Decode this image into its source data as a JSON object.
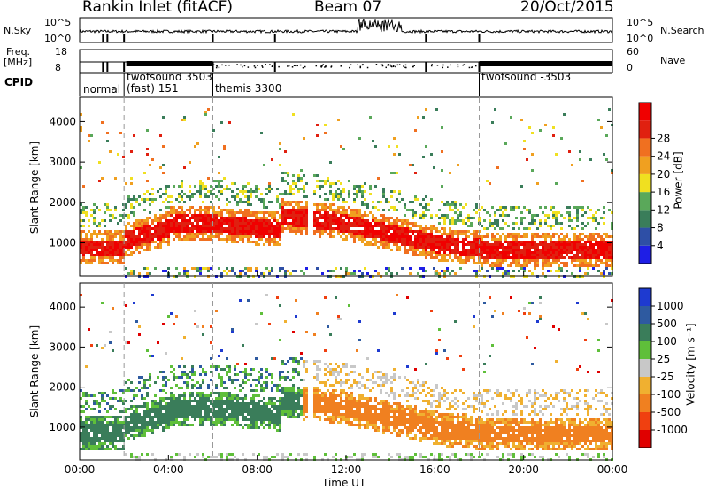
{
  "header": {
    "station": "Rankin Inlet (fitACF)",
    "beam": "Beam 07",
    "date": "20/Oct/2015"
  },
  "panels": {
    "nsky_label": "N.Sky",
    "nsky_ticks": [
      "10^5",
      "10^0"
    ],
    "nsearch_label": "N.Search",
    "nsearch_ticks": [
      "10^5",
      "10^0"
    ],
    "freq_label": "Freq.",
    "freq_unit": "[MHz]",
    "freq_ticks": [
      "18",
      "8"
    ],
    "nave_label": "Nave",
    "nave_ticks": [
      "60",
      "0"
    ],
    "cpid_label": "CPID"
  },
  "cpid_modes": [
    {
      "start_hour": 0.0,
      "label": "normal"
    },
    {
      "start_hour": 2.0,
      "label": "twofsound 3503"
    },
    {
      "start_hour": 2.0,
      "label": "(fast) 151"
    },
    {
      "start_hour": 6.0,
      "label": "themis 3300"
    },
    {
      "start_hour": 18.0,
      "label": "twofsound -3503"
    }
  ],
  "chart_data": [
    {
      "type": "heatmap",
      "name": "power",
      "ylabel": "Slant Range [km]",
      "yticks": [
        1000,
        2000,
        3000,
        4000
      ],
      "ylim": [
        180,
        4600
      ],
      "xlim": [
        0,
        24
      ],
      "colorbar_label": "Power [dB]",
      "colorbar_ticks": [
        4,
        8,
        12,
        16,
        20,
        24,
        28
      ],
      "colorbar_colors": [
        "#1e1ee6",
        "#2e4fa6",
        "#3a7d5a",
        "#5aa85a",
        "#f0e020",
        "#f0a020",
        "#f07020",
        "#e02010",
        "#f00000"
      ],
      "dashed_hours": [
        2,
        6,
        18
      ]
    },
    {
      "type": "heatmap",
      "name": "velocity",
      "ylabel": "Slant Range [km]",
      "yticks": [
        1000,
        2000,
        3000,
        4000
      ],
      "ylim": [
        180,
        4600
      ],
      "xlim": [
        0,
        24
      ],
      "colorbar_label": "Velocity [m s⁻¹]",
      "colorbar_ticks": [
        "1000",
        "500",
        "100",
        "25",
        "-25",
        "-100",
        "-500",
        "-1000"
      ],
      "colorbar_colors": [
        "#1e3ad0",
        "#2e5aa0",
        "#3a7d5a",
        "#5fbf3a",
        "#c8c8c8",
        "#f0b030",
        "#f08020",
        "#f04010",
        "#e00000"
      ],
      "dashed_hours": [
        2,
        6,
        18
      ]
    }
  ],
  "xaxis": {
    "ticks": [
      "00:00",
      "04:00",
      "08:00",
      "12:00",
      "16:00",
      "20:00",
      "00:00"
    ],
    "tick_hours": [
      0,
      4,
      8,
      12,
      16,
      20,
      24
    ],
    "label": "Time UT"
  }
}
